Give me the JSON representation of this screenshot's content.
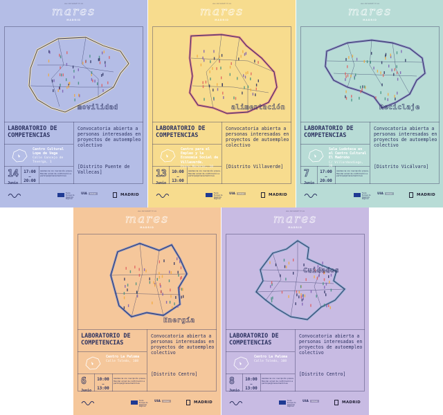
{
  "brand": "mares",
  "brand_sub": "MADRID",
  "url": "www.maresmadrid.es",
  "title": "LABORATORIO DE COMPETENCIAS",
  "convocatoria": "Convocatoria abierta a personas interesadas en proyectos de autoempleo colectivo",
  "note": "Asistencia con inscripción previa. Mandar email de confirmación a participa@maresmadrid.es",
  "footer": {
    "madrid": "MADRID",
    "eu": "Fondo Europeo de Desarrollo Regional",
    "ola": "UIA",
    "ola_badge": "Urban"
  },
  "posters": [
    {
      "theme": "movilidad",
      "day": "14",
      "month": "Junio",
      "time_start": "17:00",
      "time_end": "20:00",
      "venue": "Centro Cultural Lope de Vega",
      "address": "Calle Concejo de Teverga, 1",
      "district": "[Distrito Puente de Vallecas]",
      "bg": "#b4bde6",
      "accent": "#ffe9a8"
    },
    {
      "theme": "alimentación",
      "day": "13",
      "month": "Junio",
      "time_start": "10:00",
      "time_end": "13:00",
      "venue": "Centro para el Empleo y la Economía Social de Villaverde.",
      "address": "Paseo Moreras, 10",
      "district": "[Distrito Villaverde]",
      "bg": "#f7dc8e",
      "accent": "#e0708a"
    },
    {
      "theme": "Reciclaje",
      "day": "7",
      "month": "Junio",
      "time_start": "17:00",
      "time_end": "20:00",
      "venue": "Sala Ludoteca en el Centro Cultural El Madroño",
      "address": "C/ Villardondiego, 36",
      "district": "[Distrito Vicálvaro]",
      "bg": "#b8dcd6",
      "accent": "#8e88c4"
    },
    {
      "theme": "Energía",
      "day": "6",
      "month": "Junio",
      "time_start": "10:00",
      "time_end": "13:00",
      "venue": "Centro La Paloma",
      "address": "Calle Toledo, 108",
      "district": "[Distrito Centro]",
      "bg": "#f5c79b",
      "accent": "#6f86c9"
    },
    {
      "theme": "Cuidados",
      "day": "8",
      "month": "Junio",
      "time_start": "10:00",
      "time_end": "13:00",
      "venue": "Centro La Paloma",
      "address": "Calle Toledo, 108",
      "district": "[Distrito Centro]",
      "bg": "#c8bbe3",
      "accent": "#7ba7c7"
    }
  ]
}
